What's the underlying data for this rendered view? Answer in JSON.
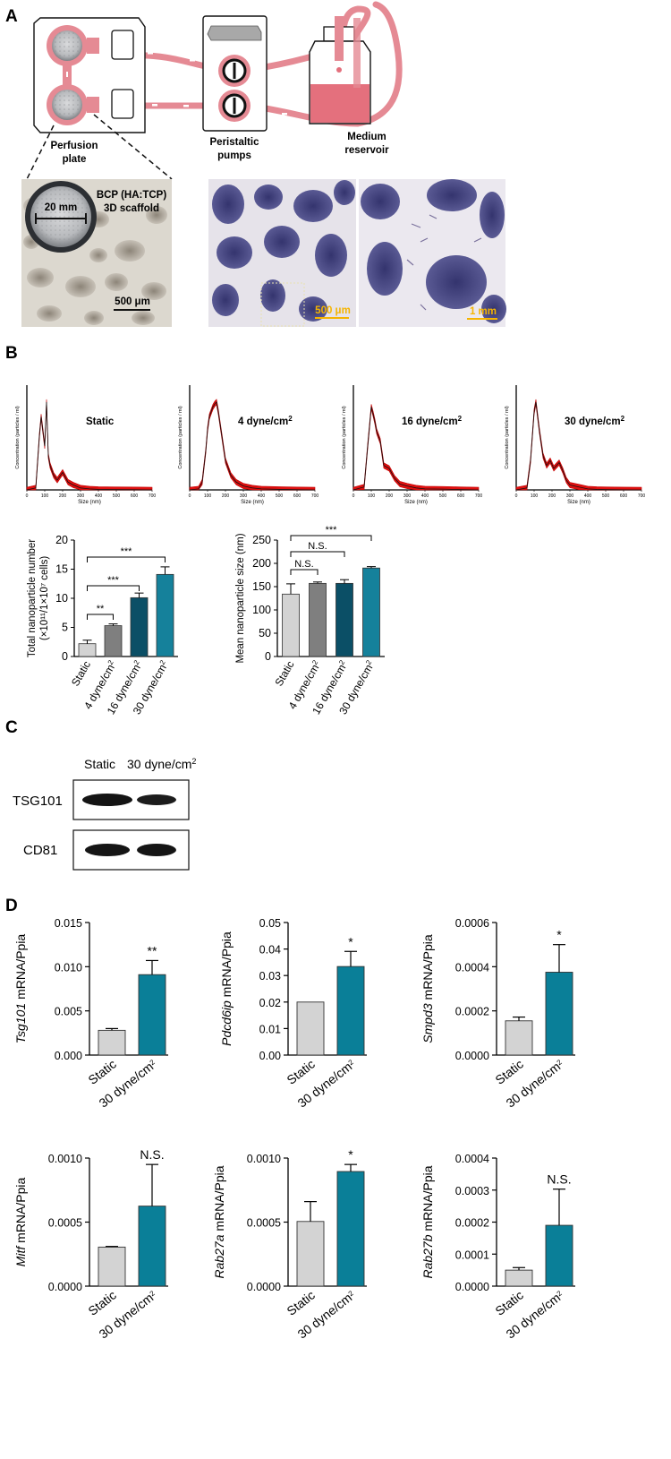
{
  "panel_a": {
    "letter": "A",
    "perfusion_plate_label": [
      "Perfusion",
      "plate"
    ],
    "pumps_label": [
      "Peristaltic",
      "pumps"
    ],
    "reservoir_label": [
      "Medium",
      "reservoir"
    ],
    "scaffold_title": [
      "BCP (HA:TCP)",
      "3D scaffold"
    ],
    "scaffold_diameter": "20 mm",
    "scale_500um_left": "500 μm",
    "scale_500um_mid": "500 μm",
    "scale_1mm": "1 mm",
    "colors": {
      "tubing": "#e58a94",
      "medium": "#e4707d",
      "accent_scale": "#f5b400"
    }
  },
  "panel_b": {
    "letter": "B",
    "nta_plots": [
      {
        "label": "Static",
        "superscript": "",
        "ylabel": "Concentration (particles / ml)",
        "xlabel": "Size (nm)",
        "xticks": [
          "0",
          "100",
          "200",
          "300",
          "400",
          "500",
          "600",
          "700"
        ]
      },
      {
        "label": "4 dyne/cm",
        "superscript": "2",
        "ylabel": "Concentration (particles / ml)",
        "xlabel": "Size (nm)",
        "xticks": [
          "0",
          "100",
          "200",
          "300",
          "400",
          "500",
          "600",
          "700"
        ]
      },
      {
        "label": "16 dyne/cm",
        "superscript": "2",
        "ylabel": "Concentration (particles / ml)",
        "xlabel": "Size (nm)",
        "xticks": [
          "0",
          "100",
          "200",
          "300",
          "400",
          "500",
          "600",
          "700"
        ]
      },
      {
        "label": "30 dyne/cm",
        "superscript": "2",
        "ylabel": "Concentration (particles / ml)",
        "xlabel": "Size (nm)",
        "xticks": [
          "0",
          "100",
          "200",
          "300",
          "400",
          "500",
          "600",
          "700"
        ]
      }
    ],
    "nta_profiles": [
      {
        "x": [
          0,
          50,
          70,
          80,
          90,
          100,
          110,
          120,
          130,
          150,
          170,
          200,
          230,
          260,
          300,
          350,
          400,
          500,
          600,
          700
        ],
        "y": [
          0,
          0.02,
          0.55,
          0.75,
          0.6,
          0.45,
          0.9,
          0.35,
          0.25,
          0.15,
          0.1,
          0.18,
          0.08,
          0.05,
          0.02,
          0.01,
          0.005,
          0.003,
          0.002,
          0
        ]
      },
      {
        "x": [
          0,
          50,
          70,
          90,
          100,
          110,
          120,
          130,
          140,
          150,
          160,
          180,
          200,
          230,
          260,
          300,
          350,
          400,
          500,
          600,
          700
        ],
        "y": [
          0,
          0.01,
          0.08,
          0.4,
          0.62,
          0.75,
          0.8,
          0.85,
          0.88,
          0.9,
          0.8,
          0.55,
          0.3,
          0.15,
          0.08,
          0.04,
          0.02,
          0.01,
          0.005,
          0.002,
          0
        ]
      },
      {
        "x": [
          0,
          60,
          80,
          100,
          110,
          120,
          130,
          150,
          170,
          200,
          230,
          260,
          300,
          350,
          400,
          500,
          600,
          700
        ],
        "y": [
          0,
          0.03,
          0.45,
          0.85,
          0.78,
          0.7,
          0.6,
          0.5,
          0.25,
          0.22,
          0.12,
          0.06,
          0.04,
          0.02,
          0.01,
          0.008,
          0.003,
          0
        ]
      },
      {
        "x": [
          0,
          60,
          80,
          100,
          110,
          120,
          130,
          150,
          170,
          190,
          210,
          240,
          260,
          280,
          300,
          350,
          400,
          450,
          500,
          600,
          700
        ],
        "y": [
          0,
          0.02,
          0.3,
          0.8,
          0.9,
          0.75,
          0.6,
          0.35,
          0.25,
          0.3,
          0.22,
          0.28,
          0.2,
          0.1,
          0.05,
          0.03,
          0.01,
          0.005,
          0.003,
          0.001,
          0
        ]
      }
    ]
  },
  "chart_data": [
    {
      "id": "total_nanoparticle_number",
      "type": "bar",
      "categories": [
        "Static",
        "4 dyne/cm2",
        "16 dyne/cm2",
        "30 dyne/cm2"
      ],
      "values": [
        2.2,
        5.3,
        10.1,
        14.1
      ],
      "errors": [
        0.6,
        0.3,
        0.8,
        1.3
      ],
      "colors": [
        "#d3d3d3",
        "#7f7f7f",
        "#0b4f66",
        "#15819b"
      ],
      "ylabel_lines": [
        "Total nanoparticle number",
        "(×10¹¹/1×10⁷ cells)"
      ],
      "ylim": [
        0,
        20
      ],
      "yticks": [
        "0",
        "5",
        "10",
        "15",
        "20"
      ],
      "significance": [
        {
          "from": 0,
          "to": 1,
          "label": "**"
        },
        {
          "from": 0,
          "to": 2,
          "label": "***"
        },
        {
          "from": 0,
          "to": 3,
          "label": "***"
        }
      ]
    },
    {
      "id": "mean_nanoparticle_size",
      "type": "bar",
      "categories": [
        "Static",
        "4 dyne/cm2",
        "16 dyne/cm2",
        "30 dyne/cm2"
      ],
      "values": [
        134,
        157,
        157,
        190
      ],
      "errors": [
        22,
        3,
        8,
        3
      ],
      "colors": [
        "#d3d3d3",
        "#7f7f7f",
        "#0b4f66",
        "#15819b"
      ],
      "ylabel_lines": [
        "Mean nanoparticle size (nm)"
      ],
      "ylim": [
        0,
        250
      ],
      "yticks": [
        "0",
        "50",
        "100",
        "150",
        "200",
        "250"
      ],
      "significance": [
        {
          "from": 0,
          "to": 1,
          "label": "N.S."
        },
        {
          "from": 0,
          "to": 2,
          "label": "N.S."
        },
        {
          "from": 0,
          "to": 3,
          "label": "***"
        }
      ]
    },
    {
      "id": "tsg101",
      "type": "bar",
      "gene": "Tsg101",
      "ylabel_suffix": " mRNA/Ppia",
      "categories": [
        "Static",
        "30 dyne/cm2"
      ],
      "values": [
        0.0028,
        0.0091
      ],
      "errors": [
        0.0002,
        0.0016
      ],
      "colors": [
        "#d3d3d3",
        "#0a7f98"
      ],
      "ylim": [
        0,
        0.015
      ],
      "yticks": [
        "0.000",
        "0.005",
        "0.010",
        "0.015"
      ],
      "significance": "**"
    },
    {
      "id": "pdcd6ip",
      "type": "bar",
      "gene": "Pdcd6ip",
      "ylabel_suffix": " mRNA/Ppia",
      "categories": [
        "Static",
        "30 dyne/cm2"
      ],
      "values": [
        0.02,
        0.0334
      ],
      "errors": [
        0,
        0.0057
      ],
      "colors": [
        "#d3d3d3",
        "#0a7f98"
      ],
      "ylim": [
        0,
        0.05
      ],
      "yticks": [
        "0.00",
        "0.01",
        "0.02",
        "0.03",
        "0.04",
        "0.05"
      ],
      "significance": "*"
    },
    {
      "id": "smpd3",
      "type": "bar",
      "gene": "Smpd3",
      "ylabel_suffix": " mRNA/Ppia",
      "categories": [
        "Static",
        "30 dyne/cm2"
      ],
      "values": [
        0.000155,
        0.000375
      ],
      "errors": [
        1.7e-05,
        0.000125
      ],
      "colors": [
        "#d3d3d3",
        "#0a7f98"
      ],
      "ylim": [
        0,
        0.0006
      ],
      "yticks": [
        "0.0000",
        "0.0002",
        "0.0004",
        "0.0006"
      ],
      "significance": "*"
    },
    {
      "id": "mitf",
      "type": "bar",
      "gene": "Mitf",
      "ylabel_suffix": " mRNA/Ppia",
      "categories": [
        "Static",
        "30 dyne/cm2"
      ],
      "values": [
        0.000305,
        0.000625
      ],
      "errors": [
        5e-06,
        0.000325
      ],
      "colors": [
        "#d3d3d3",
        "#0a7f98"
      ],
      "ylim": [
        0,
        0.001
      ],
      "yticks": [
        "0.0000",
        "0.0005",
        "0.0010"
      ],
      "significance": "N.S."
    },
    {
      "id": "rab27a",
      "type": "bar",
      "gene": "Rab27a",
      "ylabel_suffix": " mRNA/Ppia",
      "categories": [
        "Static",
        "30 dyne/cm2"
      ],
      "values": [
        0.000505,
        0.000895
      ],
      "errors": [
        0.000155,
        5.5e-05
      ],
      "colors": [
        "#d3d3d3",
        "#0a7f98"
      ],
      "ylim": [
        0,
        0.001
      ],
      "yticks": [
        "0.0000",
        "0.0005",
        "0.0010"
      ],
      "significance": "*"
    },
    {
      "id": "rab27b",
      "type": "bar",
      "gene": "Rab27b",
      "ylabel_suffix": " mRNA/Ppia",
      "categories": [
        "Static",
        "30 dyne/cm2"
      ],
      "values": [
        5e-05,
        0.00019
      ],
      "errors": [
        8e-06,
        0.000113
      ],
      "colors": [
        "#d3d3d3",
        "#0a7f98"
      ],
      "ylim": [
        0,
        0.0004
      ],
      "yticks": [
        "0.0000",
        "0.0001",
        "0.0002",
        "0.0003",
        "0.0004"
      ],
      "significance": "N.S."
    }
  ],
  "panel_c": {
    "letter": "C",
    "lane_labels": [
      "Static",
      "30 dyne/cm"
    ],
    "lane2_superscript": "2",
    "rows": [
      "TSG101",
      "CD81"
    ]
  },
  "panel_d": {
    "letter": "D"
  }
}
